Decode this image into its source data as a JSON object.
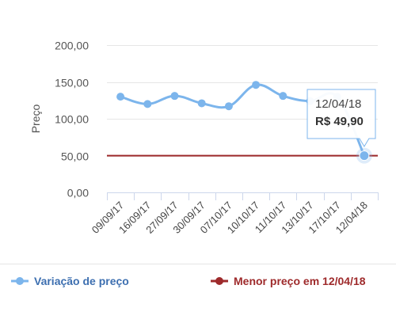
{
  "chart_data": {
    "type": "line",
    "ylabel": "Preço",
    "ylim": [
      0,
      200
    ],
    "y_ticks": [
      "0,00",
      "50,00",
      "100,00",
      "150,00",
      "200,00"
    ],
    "y_tick_values": [
      0,
      50,
      100,
      150,
      200
    ],
    "categories": [
      "09/09/17",
      "16/09/17",
      "27/09/17",
      "30/09/17",
      "07/10/17",
      "10/10/17",
      "11/10/17",
      "13/10/17",
      "17/10/17",
      "12/04/18"
    ],
    "series": [
      {
        "name": "Variação de preço",
        "color": "#7cb5ec",
        "values": [
          130,
          120,
          131,
          121,
          117,
          146,
          131,
          124,
          130,
          49.9
        ]
      },
      {
        "name": "Menor preço em 12/04/18",
        "color": "#9e2a2b",
        "value": 49.9
      }
    ],
    "grid": true,
    "legend_position": "bottom",
    "tooltip": {
      "date": "12/04/18",
      "value": "R$ 49,90"
    }
  },
  "colors": {
    "line": "#7cb5ec",
    "min_line": "#9e2a2b",
    "legend_text_blue": "#3d6fb0",
    "legend_text_red": "#9e2a2b"
  }
}
